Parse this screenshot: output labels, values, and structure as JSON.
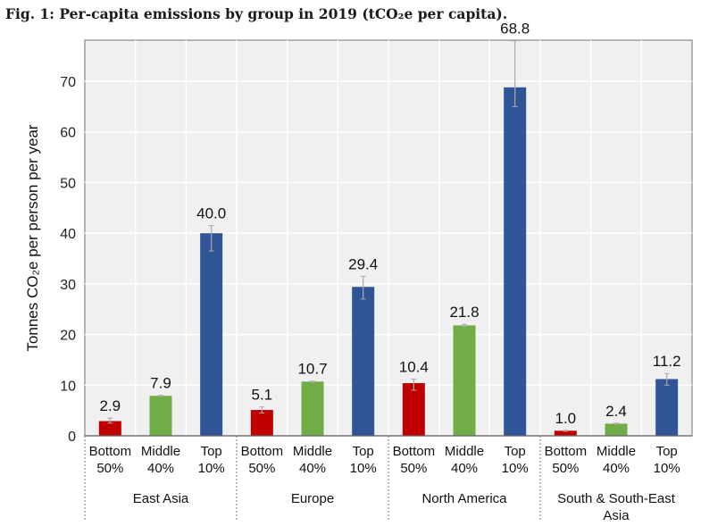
{
  "title": "Fig. 1: Per-capita emissions by group in 2019 (tCO₂e per capita).",
  "chart_data": {
    "type": "bar",
    "title": "Per-capita emissions by group in 2019 (tCO₂e per capita)",
    "ylabel": "Tonnes CO₂e per person per year",
    "ylim": [
      0,
      78
    ],
    "yticks": [
      0,
      10,
      20,
      30,
      40,
      50,
      60,
      70
    ],
    "grid": true,
    "groups": [
      "East Asia",
      "Europe",
      "North America",
      "South & South-East Asia"
    ],
    "subcategories": [
      [
        "Bottom",
        "50%"
      ],
      [
        "Middle",
        "40%"
      ],
      [
        "Top",
        "10%"
      ]
    ],
    "colors": {
      "Bottom 50%": "#c00000",
      "Middle 40%": "#70ad47",
      "Top 10%": "#2f5597"
    },
    "values": [
      {
        "group": "East Asia",
        "bars": [
          {
            "value": 2.9,
            "label": "2.9",
            "err": [
              2.5,
              3.5
            ]
          },
          {
            "value": 7.9,
            "label": "7.9",
            "err": [
              7.8,
              8.0
            ]
          },
          {
            "value": 40.0,
            "label": "40.0",
            "err": [
              36.5,
              41.5
            ]
          }
        ]
      },
      {
        "group": "Europe",
        "bars": [
          {
            "value": 5.1,
            "label": "5.1",
            "err": [
              4.5,
              5.7
            ]
          },
          {
            "value": 10.7,
            "label": "10.7",
            "err": [
              10.6,
              10.8
            ]
          },
          {
            "value": 29.4,
            "label": "29.4",
            "err": [
              27.0,
              31.5
            ]
          }
        ]
      },
      {
        "group": "North America",
        "bars": [
          {
            "value": 10.4,
            "label": "10.4",
            "err": [
              9.0,
              11.2
            ]
          },
          {
            "value": 21.8,
            "label": "21.8",
            "err": [
              21.6,
              22.0
            ]
          },
          {
            "value": 68.8,
            "label": "68.8",
            "err": [
              65.0,
              78.0
            ]
          }
        ]
      },
      {
        "group": "South & South-East Asia",
        "bars": [
          {
            "value": 1.0,
            "label": "1.0",
            "err": [
              0.9,
              1.1
            ]
          },
          {
            "value": 2.4,
            "label": "2.4",
            "err": [
              2.3,
              2.5
            ]
          },
          {
            "value": 11.2,
            "label": "11.2",
            "err": [
              10.0,
              12.3
            ]
          }
        ]
      }
    ]
  }
}
